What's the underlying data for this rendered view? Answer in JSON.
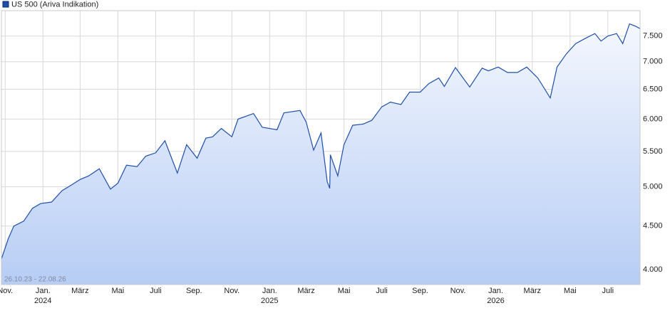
{
  "chart_data": {
    "type": "line",
    "title": "US 500 (Ariva Indikation)",
    "range_label": "26.10.23 - 22.08.26",
    "log_scale": true,
    "grid": true,
    "legend": "top-left",
    "x": [
      "2023-10-26",
      "2023-11-06",
      "2023-11-15",
      "2023-12-01",
      "2023-12-15",
      "2023-12-28",
      "2024-01-15",
      "2024-02-01",
      "2024-02-15",
      "2024-03-01",
      "2024-03-15",
      "2024-04-01",
      "2024-04-19",
      "2024-05-01",
      "2024-05-15",
      "2024-06-01",
      "2024-06-15",
      "2024-07-01",
      "2024-07-16",
      "2024-08-05",
      "2024-08-20",
      "2024-09-06",
      "2024-09-20",
      "2024-10-01",
      "2024-10-15",
      "2024-11-01",
      "2024-11-11",
      "2024-12-06",
      "2024-12-20",
      "2025-01-13",
      "2025-01-24",
      "2025-02-19",
      "2025-03-01",
      "2025-03-13",
      "2025-03-25",
      "2025-04-04",
      "2025-04-08",
      "2025-04-09",
      "2025-04-21",
      "2025-05-01",
      "2025-05-15",
      "2025-06-01",
      "2025-06-15",
      "2025-07-01",
      "2025-07-15",
      "2025-08-01",
      "2025-08-15",
      "2025-09-01",
      "2025-09-15",
      "2025-10-01",
      "2025-10-10",
      "2025-10-28",
      "2025-11-20",
      "2025-12-10",
      "2025-12-20",
      "2026-01-05",
      "2026-01-20",
      "2026-02-05",
      "2026-02-20",
      "2026-03-10",
      "2026-03-30",
      "2026-04-10",
      "2026-04-25",
      "2026-05-10",
      "2026-05-25",
      "2026-06-10",
      "2026-06-20",
      "2026-07-01",
      "2026-07-15",
      "2026-07-25",
      "2026-08-05",
      "2026-08-15",
      "2026-08-22"
    ],
    "series": [
      {
        "name": "US 500 (Ariva Indikation)",
        "color": "#1f4fa8",
        "values": [
          4120,
          4350,
          4500,
          4560,
          4720,
          4780,
          4800,
          4950,
          5020,
          5100,
          5150,
          5250,
          4970,
          5050,
          5300,
          5280,
          5430,
          5480,
          5660,
          5190,
          5600,
          5400,
          5700,
          5720,
          5850,
          5720,
          6000,
          6090,
          5870,
          5830,
          6100,
          6140,
          5950,
          5520,
          5780,
          5070,
          4980,
          5450,
          5150,
          5600,
          5900,
          5920,
          5980,
          6200,
          6280,
          6240,
          6450,
          6450,
          6600,
          6700,
          6550,
          6890,
          6540,
          6880,
          6830,
          6900,
          6800,
          6800,
          6900,
          6700,
          6350,
          6900,
          7150,
          7350,
          7450,
          7550,
          7400,
          7500,
          7550,
          7350,
          7750,
          7700,
          7650
        ]
      }
    ],
    "xlim": [
      "2023-10-26",
      "2026-08-22"
    ],
    "xticks": [
      {
        "value": "2023-11-01",
        "label": "Nov."
      },
      {
        "value": "2024-01-01",
        "label": "Jan.",
        "year": "2024"
      },
      {
        "value": "2024-03-01",
        "label": "März"
      },
      {
        "value": "2024-05-01",
        "label": "Mai"
      },
      {
        "value": "2024-07-01",
        "label": "Juli"
      },
      {
        "value": "2024-09-01",
        "label": "Sep."
      },
      {
        "value": "2024-11-01",
        "label": "Nov."
      },
      {
        "value": "2025-01-01",
        "label": "Jan.",
        "year": "2025"
      },
      {
        "value": "2025-03-01",
        "label": "März"
      },
      {
        "value": "2025-05-01",
        "label": "Mai"
      },
      {
        "value": "2025-07-01",
        "label": "Juli"
      },
      {
        "value": "2025-09-01",
        "label": "Sep."
      },
      {
        "value": "2025-11-01",
        "label": "Nov."
      },
      {
        "value": "2026-01-01",
        "label": "Jan.",
        "year": "2026"
      },
      {
        "value": "2026-03-01",
        "label": "März"
      },
      {
        "value": "2026-05-01",
        "label": "Mai"
      },
      {
        "value": "2026-07-01",
        "label": "Juli"
      }
    ],
    "ylim": [
      3845,
      8030
    ],
    "yticks": [
      {
        "value": 4000,
        "label": "4.000"
      },
      {
        "value": 4500,
        "label": "4.500"
      },
      {
        "value": 5000,
        "label": "5.000"
      },
      {
        "value": 5500,
        "label": "5.500"
      },
      {
        "value": 6000,
        "label": "6.000"
      },
      {
        "value": 6500,
        "label": "6.500"
      },
      {
        "value": 7000,
        "label": "7.000"
      },
      {
        "value": 7500,
        "label": "7.500"
      }
    ]
  }
}
